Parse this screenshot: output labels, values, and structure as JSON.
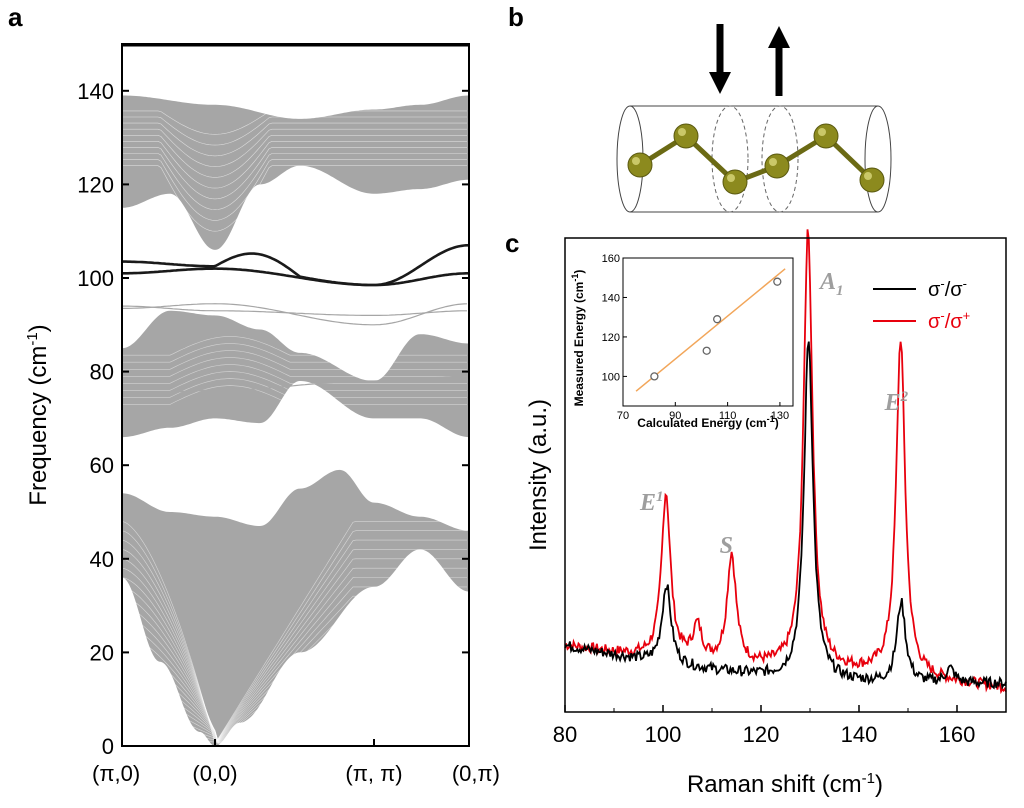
{
  "panel_labels": {
    "a": "a",
    "b": "b",
    "c": "c"
  },
  "colors": {
    "bulk_band": "#a6a6a6",
    "edge_band": "#1a1a1a",
    "copolarized": "#000000",
    "cross_polarized": "#e8000d",
    "fit_line": "#f2a65a",
    "atom": "#8c8a1e",
    "peak_label": "#9e9e9e"
  },
  "chart_data": [
    {
      "id": "a",
      "type": "line",
      "ylabel": "Frequency (cm",
      "ylabel_sup": "-1",
      "ylabel_end": ")",
      "ylim": [
        0,
        150
      ],
      "yticks": [
        0,
        20,
        40,
        60,
        80,
        100,
        120,
        140
      ],
      "xticks": [
        "(π,0)",
        "(0,0)",
        "(π, π)",
        "(0,π)"
      ],
      "grid": false,
      "bulk_bands": [
        {
          "range": [
            115,
            139
          ],
          "note": "upper dispersive band cluster"
        },
        {
          "range": [
            66,
            94
          ],
          "note": "middle band cluster"
        },
        {
          "range": [
            0,
            59
          ],
          "note": "acoustic band cluster"
        }
      ],
      "edge_bands": [
        {
          "x": [
            "(π,0)",
            "(0,0)",
            "(π, π)",
            "(0,π)"
          ],
          "values": [
            103.5,
            102.5,
            98.5,
            107
          ]
        },
        {
          "x": [
            "(π,0)",
            "(0,0)",
            "(π, π)",
            "(0,π)"
          ],
          "values": [
            101,
            102,
            98.5,
            101
          ]
        }
      ]
    },
    {
      "id": "c",
      "type": "line",
      "xlabel": "Raman shift (cm",
      "xlabel_sup": "-1",
      "xlabel_end": ")",
      "ylabel": "Intensity (a.u.)",
      "xlim": [
        80,
        170
      ],
      "xticks": [
        80,
        100,
        120,
        140,
        160
      ],
      "ylim": [
        0,
        1
      ],
      "legend_position": "top-right",
      "peak_labels": [
        {
          "text": "E",
          "sup": "1",
          "x": 100.6
        },
        {
          "text": "S",
          "x": 114
        },
        {
          "text": "A",
          "sub": "1",
          "x": 129.6
        },
        {
          "text": "E",
          "sup": "2",
          "x": 148.5
        }
      ],
      "series": [
        {
          "name": "σ",
          "name_sup_1": "-",
          "name_mid": "/σ",
          "name_sup_2": "-",
          "peaks": [
            {
              "x": 100.7,
              "height": 0.17
            },
            {
              "x": 129.7,
              "height": 0.72
            },
            {
              "x": 148.6,
              "height": 0.17
            },
            {
              "x": 158.6,
              "height": 0.03
            }
          ],
          "baseline": [
            [
              80,
              0.14
            ],
            [
              100,
              0.1
            ],
            [
              125,
              0.07
            ],
            [
              145,
              0.06
            ],
            [
              170,
              0.06
            ]
          ]
        },
        {
          "name": "σ",
          "name_sup_1": "-",
          "name_mid": "/σ",
          "name_sup_2": "+",
          "peaks": [
            {
              "x": 100.6,
              "height": 0.35
            },
            {
              "x": 107,
              "height": 0.07
            },
            {
              "x": 114,
              "height": 0.23
            },
            {
              "x": 129.6,
              "height": 0.93
            },
            {
              "x": 148.5,
              "height": 0.71
            }
          ],
          "baseline": [
            [
              80,
              0.14
            ],
            [
              100,
              0.11
            ],
            [
              125,
              0.09
            ],
            [
              145,
              0.08
            ],
            [
              170,
              0.05
            ]
          ]
        }
      ]
    },
    {
      "id": "c-inset",
      "type": "scatter",
      "xlabel": "Calculated Energy (cm",
      "xlabel_sup": "-1",
      "xlabel_end": ")",
      "ylabel": "Measured Energy (cm",
      "ylabel_sup": "-1",
      "ylabel_end": ")",
      "xlim": [
        70,
        135
      ],
      "ylim": [
        85,
        160
      ],
      "xticks": [
        70,
        90,
        110,
        130
      ],
      "yticks": [
        100,
        120,
        140,
        160
      ],
      "points": [
        {
          "x": 82,
          "y": 100
        },
        {
          "x": 102,
          "y": 113
        },
        {
          "x": 106,
          "y": 129
        },
        {
          "x": 129,
          "y": 148
        }
      ],
      "fit_line": {
        "x": [
          75,
          132
        ],
        "y": [
          92.5,
          154.5
        ]
      }
    }
  ]
}
